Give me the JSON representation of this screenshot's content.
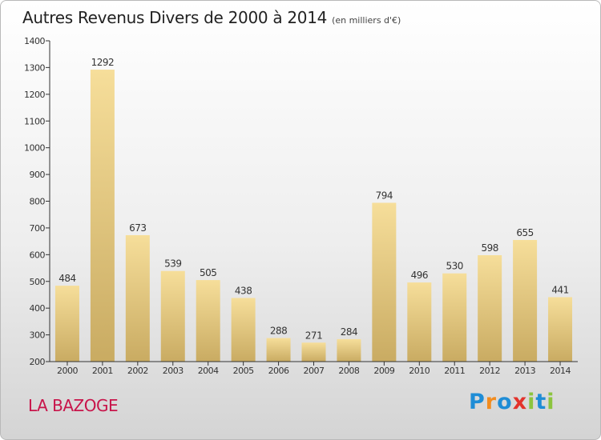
{
  "title": "Autres Revenus Divers de 2000 à 2014",
  "subtitle": "(en milliers d'€)",
  "place": "LA BAZOGE",
  "logo": {
    "letters": [
      {
        "char": "P",
        "color": "#1f8dd6"
      },
      {
        "char": "r",
        "color": "#f28c1e"
      },
      {
        "char": "o",
        "color": "#1f8dd6"
      },
      {
        "char": "x",
        "color": "#e3322b"
      },
      {
        "char": "i",
        "color": "#8cc43e"
      },
      {
        "char": "t",
        "color": "#1f8dd6"
      },
      {
        "char": "i",
        "color": "#8cc43e"
      }
    ]
  },
  "chart_data": {
    "type": "bar",
    "title": "Autres Revenus Divers de 2000 à 2014",
    "subtitle": "(en milliers d'€)",
    "categories": [
      "2000",
      "2001",
      "2002",
      "2003",
      "2004",
      "2005",
      "2006",
      "2007",
      "2008",
      "2009",
      "2010",
      "2011",
      "2012",
      "2013",
      "2014"
    ],
    "values": [
      484,
      1292,
      673,
      539,
      505,
      438,
      288,
      271,
      284,
      794,
      496,
      530,
      598,
      655,
      441
    ],
    "ylim": [
      200,
      1400
    ],
    "yticks": [
      200,
      300,
      400,
      500,
      600,
      700,
      800,
      900,
      1000,
      1100,
      1200,
      1300,
      1400
    ],
    "grid": false,
    "colors": {
      "bar_light": "#f6de9a",
      "bar_dark": "#c9ab62",
      "axis": "#333333"
    }
  }
}
